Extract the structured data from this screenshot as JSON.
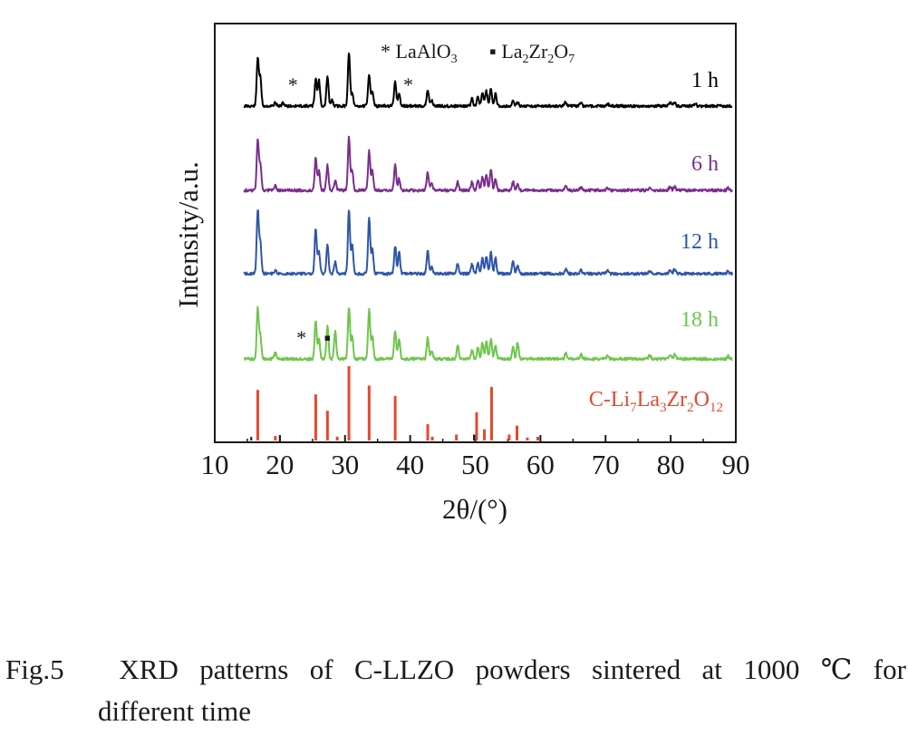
{
  "caption": {
    "number": "Fig.5",
    "line1_words": [
      "XRD",
      "patterns",
      "of",
      "C-LLZO",
      "powders",
      "sintered",
      "at",
      "1000",
      "℃",
      "for"
    ],
    "line2": "different time"
  },
  "chart_data": {
    "type": "line",
    "xlabel": "2θ/(°)",
    "ylabel": "Intensity/a.u.",
    "xlim": [
      10,
      90
    ],
    "xticks": [
      10,
      20,
      30,
      40,
      50,
      60,
      70,
      80,
      90
    ],
    "grid": false,
    "legend": {
      "position": "top",
      "entries": [
        {
          "marker": "*",
          "label": "LaAlO",
          "sub": "3"
        },
        {
          "marker": "▪",
          "parts": [
            [
              "La",
              ""
            ],
            [
              "2",
              "sub"
            ],
            [
              "Zr",
              ""
            ],
            [
              "2",
              "sub"
            ],
            [
              "O",
              ""
            ],
            [
              "7",
              "sub"
            ]
          ]
        }
      ]
    },
    "series": [
      {
        "name": "1 h",
        "color": "#000000",
        "peaks": [
          [
            16.6,
            0.78
          ],
          [
            17.0,
            0.45
          ],
          [
            19.3,
            0.06
          ],
          [
            20.5,
            0.05
          ],
          [
            25.5,
            0.45
          ],
          [
            26.0,
            0.42
          ],
          [
            27.3,
            0.48
          ],
          [
            28.0,
            0.1
          ],
          [
            30.6,
            0.88
          ],
          [
            31.1,
            0.2
          ],
          [
            33.7,
            0.52
          ],
          [
            34.2,
            0.25
          ],
          [
            37.7,
            0.4
          ],
          [
            38.3,
            0.2
          ],
          [
            42.7,
            0.26
          ],
          [
            43.3,
            0.1
          ],
          [
            49.5,
            0.12
          ],
          [
            50.4,
            0.16
          ],
          [
            51.1,
            0.22
          ],
          [
            51.7,
            0.25
          ],
          [
            52.4,
            0.28
          ],
          [
            53.1,
            0.2
          ],
          [
            55.8,
            0.08
          ],
          [
            56.5,
            0.06
          ],
          [
            63.9,
            0.07
          ],
          [
            66.2,
            0.05
          ],
          [
            70.3,
            0.04
          ],
          [
            79.9,
            0.06
          ],
          [
            80.6,
            0.07
          ],
          [
            83.8,
            0.04
          ]
        ],
        "markers": [
          {
            "x": 22,
            "symbol": "*"
          },
          {
            "x": 39.7,
            "symbol": "*"
          }
        ]
      },
      {
        "name": "6 h",
        "color": "#7b2d8e",
        "peaks": [
          [
            16.6,
            0.88
          ],
          [
            17.0,
            0.45
          ],
          [
            19.3,
            0.08
          ],
          [
            25.5,
            0.58
          ],
          [
            26.0,
            0.35
          ],
          [
            27.3,
            0.45
          ],
          [
            28.5,
            0.18
          ],
          [
            30.6,
            0.95
          ],
          [
            31.1,
            0.35
          ],
          [
            33.7,
            0.7
          ],
          [
            34.2,
            0.35
          ],
          [
            37.7,
            0.45
          ],
          [
            38.3,
            0.2
          ],
          [
            42.7,
            0.33
          ],
          [
            43.3,
            0.12
          ],
          [
            47.3,
            0.15
          ],
          [
            49.5,
            0.15
          ],
          [
            50.4,
            0.18
          ],
          [
            51.1,
            0.25
          ],
          [
            51.7,
            0.28
          ],
          [
            52.4,
            0.38
          ],
          [
            53.1,
            0.2
          ],
          [
            55.8,
            0.15
          ],
          [
            56.5,
            0.12
          ],
          [
            63.9,
            0.08
          ],
          [
            66.2,
            0.06
          ],
          [
            70.3,
            0.05
          ],
          [
            76.8,
            0.05
          ],
          [
            79.9,
            0.07
          ],
          [
            80.6,
            0.07
          ],
          [
            88.8,
            0.04
          ]
        ],
        "markers": []
      },
      {
        "name": "12 h",
        "color": "#2e56a8",
        "peaks": [
          [
            16.6,
            1.0
          ],
          [
            17.0,
            0.5
          ],
          [
            19.3,
            0.06
          ],
          [
            25.5,
            0.72
          ],
          [
            26.0,
            0.35
          ],
          [
            27.3,
            0.48
          ],
          [
            28.5,
            0.18
          ],
          [
            30.6,
            1.0
          ],
          [
            31.1,
            0.45
          ],
          [
            33.7,
            0.88
          ],
          [
            34.2,
            0.4
          ],
          [
            37.7,
            0.44
          ],
          [
            38.3,
            0.35
          ],
          [
            42.7,
            0.36
          ],
          [
            43.3,
            0.12
          ],
          [
            47.3,
            0.15
          ],
          [
            49.5,
            0.15
          ],
          [
            50.4,
            0.18
          ],
          [
            51.1,
            0.25
          ],
          [
            51.7,
            0.28
          ],
          [
            52.4,
            0.33
          ],
          [
            53.1,
            0.25
          ],
          [
            55.8,
            0.2
          ],
          [
            56.5,
            0.12
          ],
          [
            63.9,
            0.08
          ],
          [
            66.2,
            0.06
          ],
          [
            70.3,
            0.05
          ],
          [
            76.8,
            0.05
          ],
          [
            79.9,
            0.07
          ],
          [
            80.6,
            0.07
          ],
          [
            88.8,
            0.04
          ]
        ],
        "markers": []
      },
      {
        "name": "18 h",
        "color": "#6ec64b",
        "peaks": [
          [
            16.6,
            0.9
          ],
          [
            17.0,
            0.4
          ],
          [
            19.3,
            0.12
          ],
          [
            25.5,
            0.7
          ],
          [
            26.0,
            0.35
          ],
          [
            27.3,
            0.6
          ],
          [
            28.5,
            0.5
          ],
          [
            30.6,
            0.92
          ],
          [
            31.1,
            0.4
          ],
          [
            33.7,
            0.9
          ],
          [
            34.2,
            0.42
          ],
          [
            37.7,
            0.5
          ],
          [
            38.3,
            0.35
          ],
          [
            42.7,
            0.38
          ],
          [
            43.3,
            0.15
          ],
          [
            47.3,
            0.25
          ],
          [
            49.5,
            0.15
          ],
          [
            50.4,
            0.2
          ],
          [
            51.1,
            0.28
          ],
          [
            51.7,
            0.3
          ],
          [
            52.4,
            0.35
          ],
          [
            53.1,
            0.25
          ],
          [
            55.8,
            0.2
          ],
          [
            56.5,
            0.3
          ],
          [
            63.9,
            0.1
          ],
          [
            66.2,
            0.08
          ],
          [
            70.3,
            0.05
          ],
          [
            76.8,
            0.07
          ],
          [
            79.9,
            0.08
          ],
          [
            80.6,
            0.07
          ],
          [
            88.8,
            0.05
          ]
        ],
        "markers": [
          {
            "x": 23.3,
            "symbol": "*"
          },
          {
            "x": 27.3,
            "symbol": "▪"
          }
        ]
      }
    ],
    "reference": {
      "color": "#e8472e",
      "label_parts": [
        [
          "C-Li",
          ""
        ],
        [
          "7",
          "sub"
        ],
        [
          "La",
          ""
        ],
        [
          "3",
          "sub"
        ],
        [
          "Zr",
          ""
        ],
        [
          "2",
          "sub"
        ],
        [
          "O",
          ""
        ],
        [
          "12",
          "sub"
        ]
      ],
      "sticks": [
        [
          16.6,
          0.68
        ],
        [
          19.3,
          0.06
        ],
        [
          25.5,
          0.62
        ],
        [
          27.3,
          0.4
        ],
        [
          28.8,
          0.05
        ],
        [
          30.6,
          1.0
        ],
        [
          33.7,
          0.74
        ],
        [
          37.7,
          0.6
        ],
        [
          42.7,
          0.22
        ],
        [
          43.4,
          0.05
        ],
        [
          47.1,
          0.08
        ],
        [
          50.2,
          0.38
        ],
        [
          51.4,
          0.15
        ],
        [
          52.5,
          0.72
        ],
        [
          55.2,
          0.08
        ],
        [
          56.4,
          0.2
        ],
        [
          58.0,
          0.04
        ],
        [
          59.6,
          0.05
        ]
      ],
      "dark_sticks": [
        [
          15.6,
          0.05
        ],
        [
          20.0,
          0.06
        ],
        [
          49.8,
          0.08
        ]
      ]
    }
  }
}
